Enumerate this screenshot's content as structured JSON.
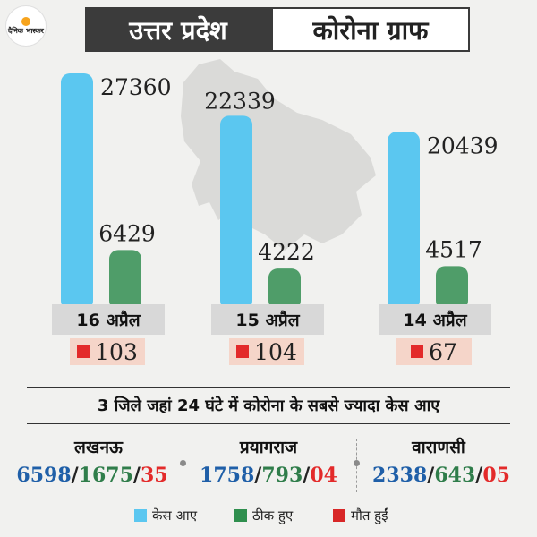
{
  "logo": {
    "text": "दैनिक भास्कर"
  },
  "header": {
    "state": "उत्तर प्रदेश",
    "title": "कोरोना ग्राफ"
  },
  "colors": {
    "cases": "#5bc7f0",
    "recovered": "#4f9d69",
    "deaths": "#e32a2a"
  },
  "chart_data": {
    "type": "bar",
    "categories": [
      "16 अप्रैल",
      "15 अप्रैल",
      "14 अप्रैल"
    ],
    "series": [
      {
        "name": "केस आए",
        "values": [
          27360,
          22339,
          20439
        ]
      },
      {
        "name": "ठीक हुए",
        "values": [
          6429,
          4222,
          4517
        ]
      },
      {
        "name": "मौत हुईं",
        "values": [
          103,
          104,
          67
        ]
      }
    ]
  },
  "deaths": [
    "103",
    "104",
    "67"
  ],
  "subtitle": "3 जिले जहां 24 घंटे में कोरोना के सबसे ज्यादा केस आए",
  "cities": [
    {
      "name": "लखनऊ",
      "cases": "6598",
      "recovered": "1675",
      "deaths": "35"
    },
    {
      "name": "प्रयागराज",
      "cases": "1758",
      "recovered": "793",
      "deaths": "04"
    },
    {
      "name": "वाराणसी",
      "cases": "2338",
      "recovered": "643",
      "deaths": "05"
    }
  ],
  "legend": [
    {
      "label": "केस आए",
      "color": "#5bc7f0"
    },
    {
      "label": "ठीक हुए",
      "color": "#2f8f4e"
    },
    {
      "label": "मौत हुईं",
      "color": "#d82727"
    }
  ]
}
